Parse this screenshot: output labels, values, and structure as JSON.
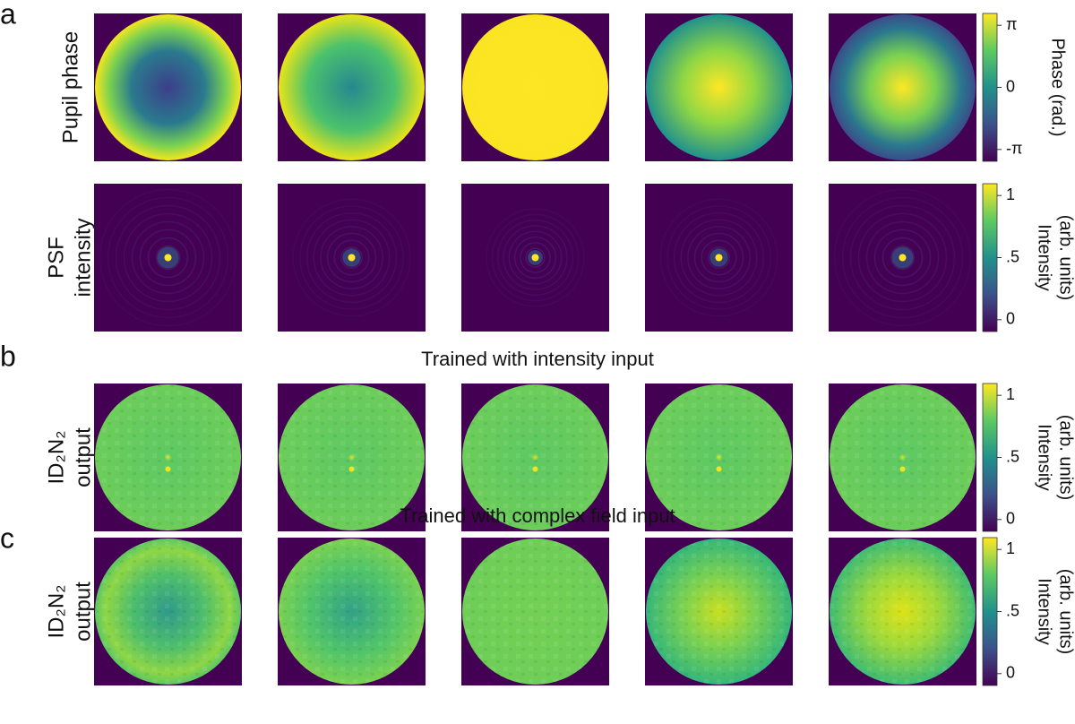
{
  "panels": [
    {
      "label": "a",
      "rows": [
        {
          "label": [
            "Pupil phase"
          ],
          "colorbar": {
            "title": [
              "Phase (rad.)"
            ],
            "ticks": [
              "π",
              "0",
              "-π"
            ]
          }
        },
        {
          "label": [
            "PSF",
            "intensity"
          ],
          "colorbar": {
            "title": [
              "Intensity",
              "(arb. units)"
            ],
            "ticks": [
              "1",
              ".5",
              "0"
            ]
          }
        }
      ]
    },
    {
      "label": "b",
      "title": "Trained with intensity input",
      "rows": [
        {
          "label": [
            "ID₂N₂",
            "output"
          ],
          "colorbar": {
            "title": [
              "Intensity",
              "(arb. units)"
            ],
            "ticks": [
              "1",
              ".5",
              "0"
            ]
          }
        }
      ]
    },
    {
      "label": "c",
      "title": "Trained with complex field input",
      "rows": [
        {
          "label": [
            "ID₂N₂",
            "output"
          ],
          "colorbar": {
            "title": [
              "Intensity",
              "(arb. units)"
            ],
            "ticks": [
              "1",
              ".5",
              "0"
            ]
          }
        }
      ]
    }
  ]
}
